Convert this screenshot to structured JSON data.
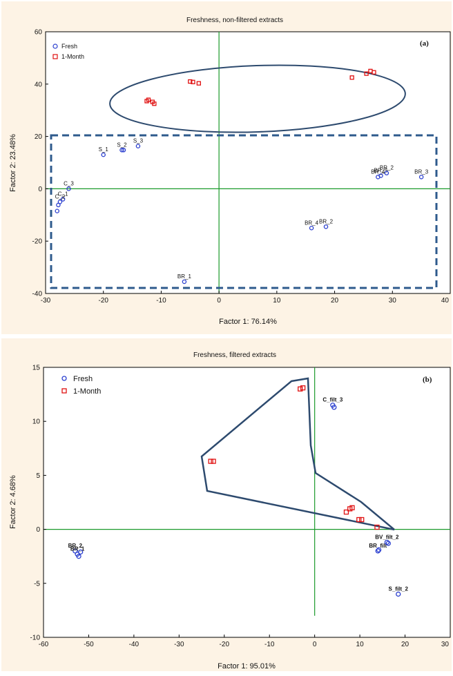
{
  "chart_data": [
    {
      "type": "scatter",
      "panel": "(a)",
      "title": "Freshness, non-filtered extracts",
      "xlabel": "Factor 1: 76.14%",
      "ylabel": "Factor 2: 23.48%",
      "xlim": [
        -30,
        40
      ],
      "ylim": [
        -40,
        60
      ],
      "xticks": [
        -30,
        -20,
        -10,
        0,
        10,
        20,
        30,
        40
      ],
      "yticks": [
        -40,
        -20,
        0,
        20,
        40,
        60
      ],
      "legend": {
        "placement": "top-left",
        "entries": [
          "Fresh",
          "1-Month"
        ]
      },
      "series": [
        {
          "name": "Fresh",
          "color": "#2b3fcf",
          "marker": "circle",
          "points": [
            {
              "x": -20.0,
              "y": 13.0,
              "label": "S_1"
            },
            {
              "x": -16.8,
              "y": 14.8,
              "label": "S_2"
            },
            {
              "x": -16.5,
              "y": 14.8,
              "label": ""
            },
            {
              "x": -14.0,
              "y": 16.3,
              "label": "S_3"
            },
            {
              "x": -26.0,
              "y": 0.0,
              "label": "C_3"
            },
            {
              "x": -27.0,
              "y": -4.0,
              "label": "C_1"
            },
            {
              "x": -27.5,
              "y": -5.0,
              "label": "C_2"
            },
            {
              "x": -27.8,
              "y": -6.2,
              "label": ""
            },
            {
              "x": -28.0,
              "y": -8.5,
              "label": ""
            },
            {
              "x": -6.0,
              "y": -35.5,
              "label": "BR_1"
            },
            {
              "x": 16.0,
              "y": -15.0,
              "label": "BR_4"
            },
            {
              "x": 18.5,
              "y": -14.5,
              "label": "BR_2"
            },
            {
              "x": 27.5,
              "y": 4.5,
              "label": "BR_4"
            },
            {
              "x": 28.0,
              "y": 5.0,
              "label": "BR_5"
            },
            {
              "x": 29.0,
              "y": 6.0,
              "label": "BR_2"
            },
            {
              "x": 35.0,
              "y": 4.5,
              "label": "BR_3"
            }
          ]
        },
        {
          "name": "1-Month",
          "color": "#e01010",
          "marker": "square",
          "points": [
            {
              "x": -12.5,
              "y": 33.5
            },
            {
              "x": -12.2,
              "y": 34.0
            },
            {
              "x": -11.5,
              "y": 33.2
            },
            {
              "x": -11.2,
              "y": 32.5
            },
            {
              "x": -5.0,
              "y": 41.0
            },
            {
              "x": -4.5,
              "y": 40.8
            },
            {
              "x": -3.5,
              "y": 40.3
            },
            {
              "x": 23.0,
              "y": 42.5
            },
            {
              "x": 25.5,
              "y": 44.0
            },
            {
              "x": 26.2,
              "y": 45.0
            },
            {
              "x": 26.8,
              "y": 44.5
            }
          ]
        }
      ]
    },
    {
      "type": "scatter",
      "panel": "(b)",
      "title": "Freshness, filtered extracts",
      "xlabel": "Factor 1: 95.01%",
      "ylabel": "Factor 2:  4.68%",
      "xlim": [
        -60,
        30
      ],
      "ylim": [
        -10,
        15
      ],
      "xticks": [
        -60,
        -50,
        -40,
        -30,
        -20,
        -10,
        0,
        10,
        20,
        30
      ],
      "yticks": [
        -10,
        -5,
        0,
        5,
        10,
        15
      ],
      "legend": {
        "placement": "top-left",
        "entries": [
          "Fresh",
          "1-Month"
        ]
      },
      "series": [
        {
          "name": "Fresh",
          "color": "#2b3fcf",
          "marker": "circle",
          "points": [
            {
              "x": -53.0,
              "y": -2.0,
              "label": "BR_2"
            },
            {
              "x": -52.5,
              "y": -2.3,
              "label": "BR_1"
            },
            {
              "x": -52.2,
              "y": -2.5,
              "label": ""
            },
            {
              "x": -51.8,
              "y": -2.1,
              "label": ""
            },
            {
              "x": 4.0,
              "y": 11.5,
              "label": "C_filt_3"
            },
            {
              "x": 4.3,
              "y": 11.3,
              "label": ""
            },
            {
              "x": 14.0,
              "y": -2.0,
              "label": "BR_filt"
            },
            {
              "x": 14.2,
              "y": -1.9,
              "label": ""
            },
            {
              "x": 16.0,
              "y": -1.2,
              "label": "BV_filt_2"
            },
            {
              "x": 16.3,
              "y": -1.3,
              "label": ""
            },
            {
              "x": 18.5,
              "y": -6.0,
              "label": "S_filt_2"
            }
          ]
        },
        {
          "name": "1-Month",
          "color": "#e01010",
          "marker": "square",
          "points": [
            {
              "x": -3.2,
              "y": 13.0
            },
            {
              "x": -2.6,
              "y": 13.1
            },
            {
              "x": -23.0,
              "y": 6.3
            },
            {
              "x": -22.4,
              "y": 6.3
            },
            {
              "x": 7.0,
              "y": 1.6
            },
            {
              "x": 7.8,
              "y": 1.9
            },
            {
              "x": 8.3,
              "y": 2.0
            },
            {
              "x": 9.8,
              "y": 0.9
            },
            {
              "x": 10.4,
              "y": 0.9
            },
            {
              "x": 13.8,
              "y": 0.2
            }
          ]
        }
      ]
    }
  ]
}
